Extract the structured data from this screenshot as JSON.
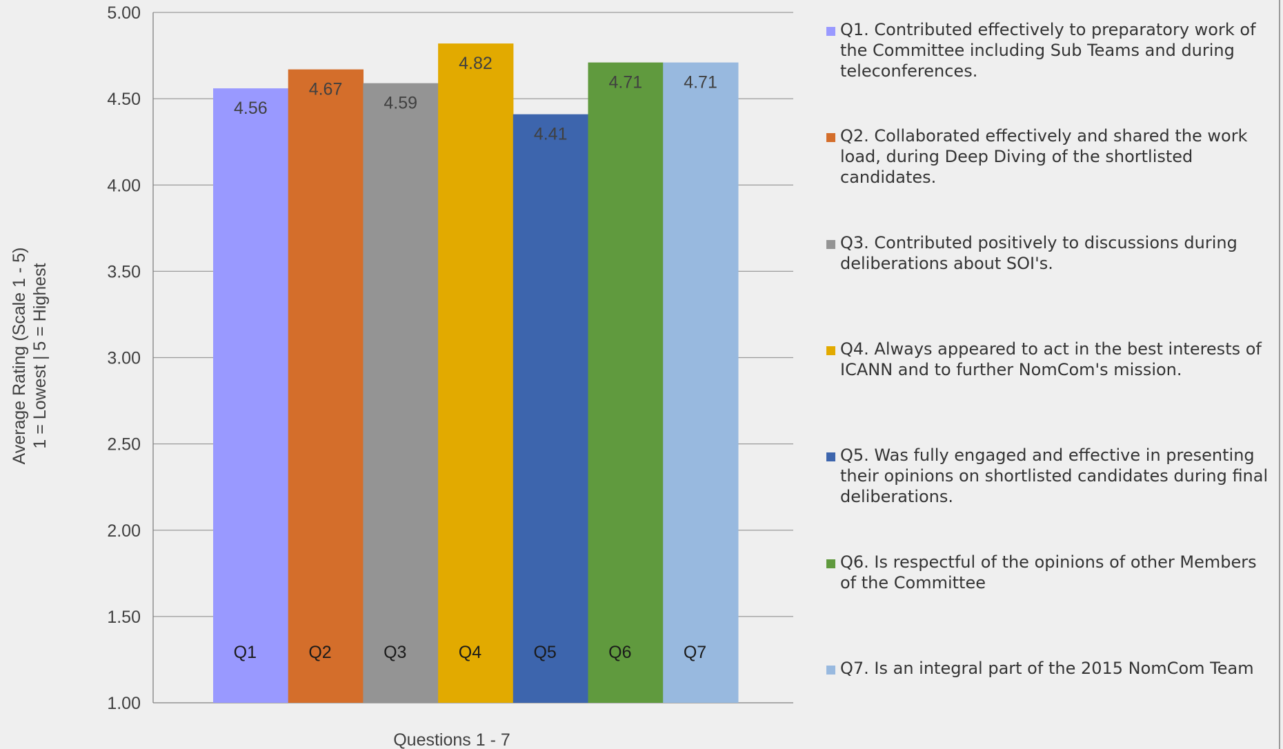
{
  "chart_data": {
    "type": "bar",
    "title": "",
    "xlabel": "Questions 1 - 7",
    "ylabel_lines": [
      "Average Rating (Scale 1 - 5)",
      "1 = Lowest | 5 = Highest"
    ],
    "ylim": [
      1.0,
      5.0
    ],
    "yticks": [
      "1.00",
      "1.50",
      "2.00",
      "2.50",
      "3.00",
      "3.50",
      "4.00",
      "4.50",
      "5.00"
    ],
    "grid": true,
    "legend_position": "right",
    "categories": [
      "Q1",
      "Q2",
      "Q3",
      "Q4",
      "Q5",
      "Q6",
      "Q7"
    ],
    "values": [
      4.56,
      4.67,
      4.59,
      4.82,
      4.41,
      4.71,
      4.71
    ],
    "value_labels": [
      "4.56",
      "4.67",
      "4.59",
      "4.82",
      "4.41",
      "4.71",
      "4.71"
    ],
    "colors": [
      "#9999ff",
      "#d46e2b",
      "#949494",
      "#e2aa00",
      "#3d65ad",
      "#609a3e",
      "#98b9df"
    ],
    "legend": [
      "Q1. Contributed effectively to preparatory work of the Committee including Sub Teams and during teleconferences.",
      "Q2. Collaborated effectively and shared the work load, during Deep Diving of the shortlisted candidates.",
      "Q3. Contributed positively to discussions during deliberations about SOI's.",
      "Q4. Always appeared to act in the best interests of ICANN and to further NomCom's mission.",
      "Q5. Was fully engaged and effective in presenting their opinions on shortlisted candidates during final deliberations.",
      "Q6. Is respectful of the opinions of other Members of the Committee",
      "Q7. Is an integral part of the 2015 NomCom Team"
    ]
  }
}
